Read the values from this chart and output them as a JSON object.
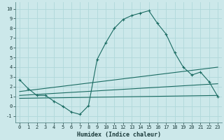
{
  "xlabel": "Humidex (Indice chaleur)",
  "xlim": [
    -0.5,
    23.5
  ],
  "ylim": [
    -1.7,
    10.7
  ],
  "bg_color": "#cce8ea",
  "line_color": "#1a6b62",
  "grid_color": "#b0d8da",
  "main_x": [
    0,
    1,
    2,
    3,
    4,
    5,
    6,
    7,
    8,
    9,
    10,
    11,
    12,
    13,
    14,
    15,
    16,
    17,
    18,
    19,
    20,
    21,
    22,
    23
  ],
  "main_y": [
    2.7,
    1.8,
    1.1,
    1.1,
    0.5,
    0.0,
    -0.6,
    -0.85,
    0.05,
    4.8,
    6.5,
    8.0,
    8.9,
    9.3,
    9.55,
    9.8,
    8.5,
    7.4,
    5.5,
    4.0,
    3.2,
    3.5,
    2.5,
    1.0
  ],
  "line2_x": [
    0,
    23
  ],
  "line2_y": [
    1.5,
    4.0
  ],
  "line3_x": [
    0,
    23
  ],
  "line3_y": [
    1.1,
    2.3
  ],
  "line4_x": [
    0,
    23
  ],
  "line4_y": [
    0.8,
    1.1
  ],
  "xticks": [
    0,
    1,
    2,
    3,
    4,
    5,
    6,
    7,
    8,
    9,
    10,
    11,
    12,
    13,
    14,
    15,
    16,
    17,
    18,
    19,
    20,
    21,
    22,
    23
  ],
  "yticks": [
    -1,
    0,
    1,
    2,
    3,
    4,
    5,
    6,
    7,
    8,
    9,
    10
  ],
  "tick_fontsize": 5.0,
  "xlabel_fontsize": 6.0
}
